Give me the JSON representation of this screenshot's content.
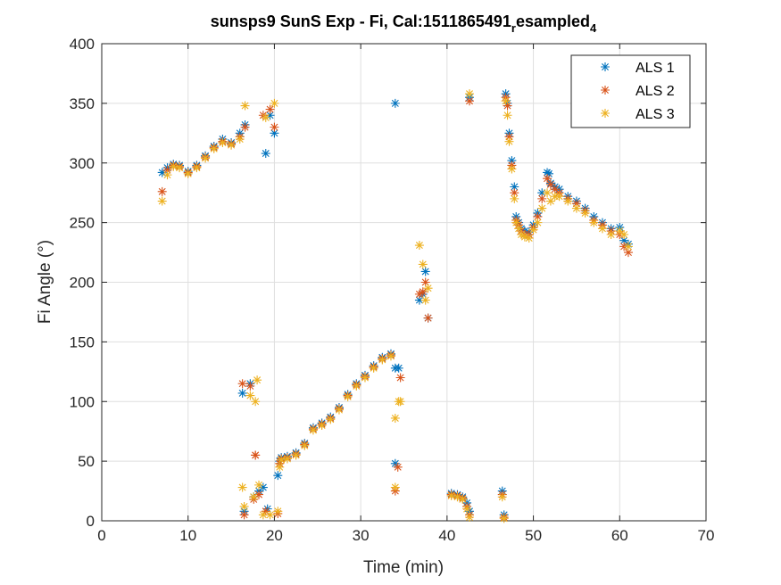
{
  "chart_data": {
    "type": "scatter",
    "title": "sunsps9 SunS Exp - Fi, Cal:1511865491",
    "title_sub": "r",
    "title_mid": "esampled",
    "title_sub2": "4",
    "xlabel": "Time (min)",
    "ylabel": "Fi Angle (°)",
    "xlim": [
      0,
      70
    ],
    "ylim": [
      0,
      400
    ],
    "xticks": [
      0,
      10,
      20,
      30,
      40,
      50,
      60,
      70
    ],
    "yticks": [
      0,
      50,
      100,
      150,
      200,
      250,
      300,
      350,
      400
    ],
    "grid": true,
    "legend_position": "top-right",
    "marker": "asterisk",
    "series": [
      {
        "name": "ALS 1",
        "color": "#0072BD",
        "x": [
          7.0,
          7.6,
          8.3,
          9.0,
          10.0,
          11.0,
          12.0,
          13.0,
          14.0,
          15.0,
          16.0,
          16.6,
          16.3,
          16.5,
          17.2,
          17.6,
          18.2,
          18.7,
          19.0,
          19.2,
          19.5,
          20.0,
          20.4,
          20.6,
          20.8,
          21.5,
          22.5,
          23.5,
          24.5,
          25.5,
          26.5,
          27.5,
          28.5,
          29.5,
          30.5,
          31.5,
          32.5,
          33.5,
          34.0,
          34.0,
          34.4,
          36.8,
          37.2,
          37.5,
          37.8,
          40.5,
          41.2,
          41.8,
          42.3,
          42.6,
          42.6,
          46.4,
          46.6,
          46.8,
          47.0,
          47.2,
          47.5,
          47.8,
          48.0,
          48.3,
          48.6,
          49.0,
          49.5,
          50.0,
          50.5,
          51.0,
          51.6,
          51.8,
          52.0,
          52.5,
          53.0,
          54.0,
          55.0,
          56.0,
          57.0,
          58.0,
          59.0,
          60.0,
          60.5,
          61.0,
          34.0
        ],
        "y": [
          292,
          296,
          299,
          298,
          293,
          298,
          306,
          314,
          320,
          317,
          325,
          332,
          107,
          8,
          115,
          20,
          25,
          28,
          308,
          10,
          340,
          325,
          38,
          50,
          53,
          54,
          57,
          65,
          78,
          82,
          87,
          95,
          106,
          115,
          122,
          130,
          137,
          140,
          48,
          128,
          128,
          185,
          190,
          209,
          170,
          23,
          22,
          20,
          15,
          8,
          355,
          25,
          5,
          358,
          350,
          325,
          302,
          280,
          255,
          250,
          245,
          243,
          242,
          248,
          258,
          275,
          292,
          291,
          283,
          280,
          278,
          272,
          268,
          262,
          255,
          250,
          245,
          246,
          235,
          232,
          350
        ]
      },
      {
        "name": "ALS 2",
        "color": "#D95319",
        "x": [
          7.0,
          7.6,
          8.3,
          9.0,
          10.0,
          11.0,
          12.0,
          13.0,
          14.0,
          15.0,
          16.0,
          16.6,
          16.3,
          16.5,
          17.2,
          17.6,
          17.8,
          18.2,
          18.7,
          19.0,
          19.5,
          20.0,
          20.4,
          20.6,
          20.8,
          21.5,
          22.5,
          23.5,
          24.5,
          25.5,
          26.5,
          27.5,
          28.5,
          29.5,
          30.5,
          31.5,
          32.5,
          33.5,
          34.0,
          34.3,
          34.6,
          36.8,
          37.2,
          37.5,
          37.8,
          40.5,
          41.2,
          41.8,
          42.3,
          42.6,
          42.6,
          46.4,
          46.6,
          46.8,
          47.0,
          47.2,
          47.5,
          47.8,
          48.0,
          48.3,
          48.6,
          49.0,
          49.5,
          50.0,
          50.5,
          51.0,
          51.6,
          52.0,
          52.5,
          53.0,
          54.0,
          55.0,
          56.0,
          57.0,
          58.0,
          59.0,
          60.0,
          60.5,
          61.0,
          17.8
        ],
        "y": [
          276,
          294,
          298,
          297,
          292,
          297,
          305,
          313,
          318,
          316,
          322,
          330,
          115,
          5,
          113,
          18,
          55,
          22,
          340,
          8,
          345,
          330,
          6,
          48,
          52,
          53,
          56,
          64,
          77,
          81,
          86,
          94,
          105,
          114,
          121,
          129,
          136,
          139,
          25,
          45,
          120,
          190,
          192,
          200,
          170,
          22,
          21,
          19,
          12,
          5,
          352,
          22,
          3,
          355,
          348,
          322,
          298,
          275,
          252,
          248,
          243,
          240,
          240,
          246,
          255,
          270,
          287,
          282,
          278,
          275,
          270,
          266,
          260,
          252,
          248,
          243,
          240,
          230,
          225,
          55
        ]
      },
      {
        "name": "ALS 3",
        "color": "#EDB120",
        "x": [
          7.0,
          7.6,
          8.3,
          9.0,
          10.0,
          11.0,
          12.0,
          13.0,
          14.0,
          15.0,
          16.0,
          16.6,
          16.3,
          16.5,
          17.2,
          17.6,
          18.2,
          18.7,
          19.0,
          19.5,
          20.0,
          20.4,
          20.6,
          20.8,
          21.5,
          22.5,
          23.5,
          24.5,
          25.5,
          26.5,
          27.5,
          28.5,
          29.5,
          30.5,
          31.5,
          32.5,
          33.5,
          34.0,
          34.0,
          34.4,
          34.6,
          36.8,
          37.2,
          37.5,
          37.8,
          40.5,
          41.2,
          41.8,
          42.3,
          42.6,
          42.6,
          46.4,
          46.6,
          46.8,
          47.0,
          47.2,
          47.5,
          47.8,
          48.0,
          48.3,
          48.6,
          49.0,
          49.5,
          50.0,
          50.5,
          51.0,
          51.6,
          52.0,
          52.5,
          53.0,
          54.0,
          55.0,
          56.0,
          57.0,
          58.0,
          59.0,
          60.0,
          60.5,
          61.0,
          17.8,
          18.0
        ],
        "y": [
          268,
          290,
          297,
          296,
          291,
          296,
          304,
          312,
          317,
          315,
          320,
          348,
          28,
          12,
          105,
          20,
          30,
          5,
          338,
          5,
          350,
          8,
          45,
          51,
          52,
          55,
          63,
          76,
          80,
          85,
          93,
          104,
          113,
          120,
          128,
          135,
          138,
          28,
          86,
          100,
          100,
          231,
          215,
          185,
          195,
          21,
          20,
          18,
          10,
          3,
          358,
          20,
          2,
          352,
          340,
          318,
          295,
          270,
          250,
          245,
          240,
          238,
          237,
          244,
          250,
          262,
          275,
          268,
          272,
          272,
          268,
          262,
          258,
          250,
          245,
          240,
          243,
          240,
          230,
          100,
          118
        ]
      }
    ]
  }
}
